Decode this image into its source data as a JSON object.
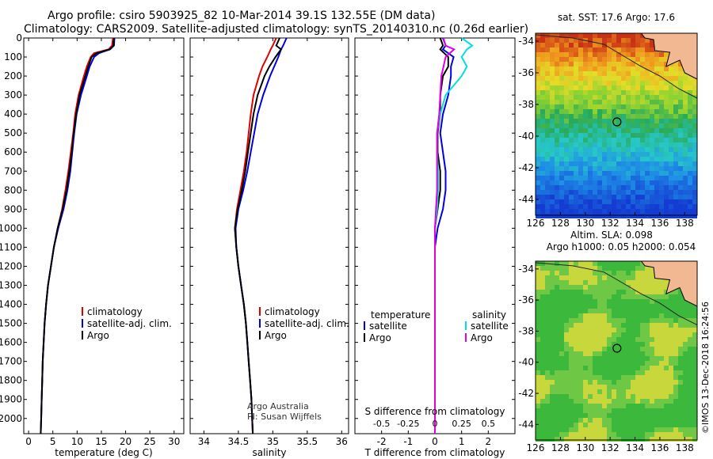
{
  "header": {
    "line1": "Argo profile: csiro 5903925_82 10-Mar-2014 39.1S 132.55E (DM data)",
    "line2": "Climatology: CARS2009. Satellite-adjusted climatology: synTS_20140310.nc (0.26d earlier)"
  },
  "chart_data": [
    {
      "type": "line",
      "xlabel": "temperature (deg C)",
      "ylabel": "",
      "xlim": [
        -1,
        32
      ],
      "ylim": [
        2080,
        0
      ],
      "xticks": [
        "0",
        "5",
        "10",
        "15",
        "20",
        "25",
        "30"
      ],
      "yticks": [
        "0",
        "100",
        "200",
        "300",
        "400",
        "500",
        "600",
        "700",
        "800",
        "900",
        "1000",
        "1100",
        "1200",
        "1300",
        "1400",
        "1500",
        "1600",
        "1700",
        "1800",
        "1900",
        "2000"
      ],
      "legend": [
        "climatology",
        "satellite-adj. clim.",
        "Argo"
      ],
      "series": [
        {
          "name": "climatology",
          "color": "#e00000",
          "y": [
            0,
            40,
            60,
            80,
            100,
            150,
            200,
            300,
            400,
            500,
            600,
            700,
            800,
            900,
            1000,
            1100,
            1200,
            1300,
            1400,
            1500,
            1600,
            1700,
            1800,
            1900,
            2000,
            2080
          ],
          "values": [
            17.4,
            17.2,
            16.5,
            13.5,
            12.8,
            12.0,
            11.4,
            10.3,
            9.6,
            9.2,
            8.7,
            8.2,
            7.6,
            6.9,
            6.0,
            5.2,
            4.6,
            4.0,
            3.6,
            3.3,
            3.1,
            2.9,
            2.8,
            2.7,
            2.6,
            2.5
          ]
        },
        {
          "name": "satellite-adj. clim.",
          "color": "#0000e0",
          "y": [
            0,
            40,
            60,
            80,
            100,
            150,
            200,
            300,
            400,
            500,
            600,
            700,
            800,
            900,
            1000,
            1100,
            1200,
            1300,
            1400,
            1500,
            1600,
            1700,
            1800,
            1900,
            2000,
            2080
          ],
          "values": [
            17.7,
            17.6,
            16.8,
            14.5,
            13.5,
            12.6,
            12.0,
            10.8,
            9.9,
            9.4,
            9.0,
            8.6,
            8.0,
            7.2,
            6.1,
            5.2,
            4.6,
            4.0,
            3.6,
            3.3,
            3.1,
            2.9,
            2.8,
            2.7,
            2.6,
            2.5
          ]
        },
        {
          "name": "Argo",
          "color": "#000000",
          "y": [
            0,
            40,
            60,
            80,
            100,
            150,
            200,
            300,
            400,
            500,
            600,
            700,
            800,
            900,
            1000,
            1100,
            1200,
            1300,
            1400,
            1500,
            1600,
            1700,
            1800,
            1900,
            2000,
            2080
          ],
          "values": [
            17.6,
            17.5,
            16.7,
            14.0,
            13.0,
            12.3,
            11.7,
            10.5,
            9.8,
            9.3,
            8.9,
            8.4,
            7.8,
            7.0,
            6.0,
            5.2,
            4.6,
            4.0,
            3.6,
            3.3,
            3.1,
            2.9,
            2.8,
            2.7,
            2.6,
            2.5
          ]
        }
      ]
    },
    {
      "type": "line",
      "xlabel": "salinity",
      "ylabel": "",
      "xlim": [
        33.8,
        36.1
      ],
      "ylim": [
        2080,
        0
      ],
      "xticks": [
        "34",
        "34.5",
        "35",
        "35.5",
        "36"
      ],
      "legend": [
        "climatology",
        "satellite-adj. clim.",
        "Argo"
      ],
      "annotations": [
        "Argo Australia",
        "PI: Susan Wijffels"
      ],
      "series": [
        {
          "name": "climatology",
          "color": "#e00000",
          "y": [
            0,
            40,
            60,
            100,
            150,
            200,
            300,
            400,
            500,
            600,
            700,
            800,
            900,
            1000,
            1100,
            1200,
            1300,
            1400,
            1500,
            1600,
            1700,
            1800,
            1900,
            2000,
            2080
          ],
          "values": [
            35.05,
            35.0,
            34.97,
            34.92,
            34.85,
            34.8,
            34.72,
            34.68,
            34.65,
            34.62,
            34.58,
            34.53,
            34.48,
            34.45,
            34.47,
            34.5,
            34.54,
            34.58,
            34.61,
            34.63,
            34.65,
            34.67,
            34.69,
            34.7,
            34.71
          ]
        },
        {
          "name": "satellite-adj. clim.",
          "color": "#0000e0",
          "y": [
            0,
            40,
            60,
            100,
            150,
            200,
            300,
            400,
            500,
            600,
            700,
            800,
            900,
            1000,
            1100,
            1200,
            1300,
            1400,
            1500,
            1600,
            1700,
            1800,
            1900,
            2000,
            2080
          ],
          "values": [
            35.2,
            35.15,
            35.12,
            35.08,
            35.02,
            34.96,
            34.86,
            34.78,
            34.73,
            34.68,
            34.63,
            34.57,
            34.5,
            34.46,
            34.47,
            34.5,
            34.54,
            34.58,
            34.61,
            34.63,
            34.65,
            34.67,
            34.69,
            34.7,
            34.71
          ]
        },
        {
          "name": "Argo",
          "color": "#000000",
          "y": [
            0,
            40,
            60,
            100,
            150,
            200,
            300,
            400,
            500,
            600,
            700,
            800,
            900,
            1000,
            1100,
            1200,
            1300,
            1400,
            1500,
            1600,
            1700,
            1800,
            1900,
            2000,
            2080
          ],
          "values": [
            35.1,
            35.05,
            35.12,
            35.04,
            34.95,
            34.88,
            34.78,
            34.72,
            34.68,
            34.64,
            34.6,
            34.55,
            34.49,
            34.45,
            34.47,
            34.5,
            34.54,
            34.58,
            34.61,
            34.63,
            34.65,
            34.67,
            34.69,
            34.7,
            34.71
          ]
        }
      ]
    },
    {
      "type": "line",
      "xlabel": "T difference from climatology",
      "x2label": "S difference from climatology",
      "ylabel": "",
      "xlim": [
        -3,
        3
      ],
      "ylim": [
        2080,
        0
      ],
      "xticks": [
        "-2",
        "-1",
        "0",
        "1",
        "2"
      ],
      "x2ticks": [
        "-0.5",
        "-0.25",
        "0",
        "0.25",
        "0.5"
      ],
      "legend_left_title": "temperature",
      "legend_right_title": "salinity",
      "legend_left": [
        "satellite",
        "Argo"
      ],
      "legend_right": [
        "satellite",
        "Argo"
      ],
      "series": [
        {
          "name": "satellite",
          "color": "#0000e0",
          "y": [
            0,
            40,
            60,
            100,
            150,
            200,
            300,
            400,
            500,
            600,
            700,
            800,
            900,
            1000,
            1100,
            1200,
            1300,
            1500,
            2000,
            2080
          ],
          "values": [
            0.3,
            0.4,
            0.3,
            0.7,
            0.6,
            0.6,
            0.5,
            0.3,
            0.2,
            0.3,
            0.4,
            0.4,
            0.3,
            0.1,
            0.0,
            0.0,
            0.0,
            0.0,
            0.0,
            0.0
          ]
        },
        {
          "name": "Argo",
          "color": "#000000",
          "y": [
            0,
            40,
            60,
            100,
            150,
            200,
            300,
            400,
            500,
            600,
            700,
            800,
            900,
            1000,
            1100,
            1200,
            1300,
            1500,
            2000,
            2080
          ],
          "values": [
            0.2,
            0.3,
            0.2,
            0.5,
            0.5,
            0.3,
            0.2,
            0.2,
            0.1,
            0.1,
            0.2,
            0.2,
            0.1,
            0.0,
            0.0,
            0.0,
            0.0,
            0.0,
            0.0,
            0.0
          ]
        },
        {
          "name": "satellite",
          "color": "#00e0e0",
          "y": [
            0,
            40,
            60,
            100,
            150,
            200,
            300,
            400,
            500,
            600,
            700,
            800,
            900,
            1000,
            1100,
            1200,
            1300,
            1500,
            2000,
            2080
          ],
          "values": [
            0.25,
            0.35,
            0.3,
            0.25,
            0.3,
            0.25,
            0.1,
            0.05,
            0.02,
            0.02,
            0.03,
            0.03,
            0.02,
            0.0,
            0.0,
            0.0,
            0.0,
            0.0,
            0.0,
            0.0
          ]
        },
        {
          "name": "Argo",
          "color": "#e000e0",
          "y": [
            0,
            40,
            60,
            100,
            150,
            200,
            300,
            400,
            500,
            600,
            700,
            800,
            900,
            1000,
            1100,
            1200,
            1300,
            1500,
            2000,
            2080
          ],
          "values": [
            0.08,
            0.1,
            0.18,
            0.1,
            0.08,
            0.06,
            0.05,
            0.04,
            0.02,
            0.02,
            0.02,
            0.02,
            0.01,
            0.0,
            0.0,
            0.0,
            0.0,
            0.0,
            0.0,
            0.0
          ]
        }
      ]
    },
    {
      "type": "heatmap",
      "title": "sat. SST: 17.6 Argo: 17.6",
      "xlim": [
        126,
        139
      ],
      "ylim": [
        -45,
        -33.5
      ],
      "xticks": [
        "126",
        "128",
        "130",
        "132",
        "134",
        "136",
        "138"
      ],
      "yticks": [
        "-34",
        "-36",
        "-38",
        "-40",
        "-42",
        "-44"
      ],
      "marker": {
        "lon": 132.55,
        "lat": -39.1
      }
    },
    {
      "type": "heatmap",
      "title": "Altim. SLA: 0.098",
      "subtitle": "Argo h1000: 0.05 h2000: 0.054",
      "xlim": [
        126,
        139
      ],
      "ylim": [
        -45,
        -33.5
      ],
      "xticks": [
        "126",
        "128",
        "130",
        "132",
        "134",
        "136",
        "138"
      ],
      "yticks": [
        "-34",
        "-36",
        "-38",
        "-40",
        "-42",
        "-44"
      ],
      "marker": {
        "lon": 132.55,
        "lat": -39.1
      }
    }
  ],
  "footer": {
    "copyright": "©IMOS 13-Dec-2018 16:24:56"
  }
}
